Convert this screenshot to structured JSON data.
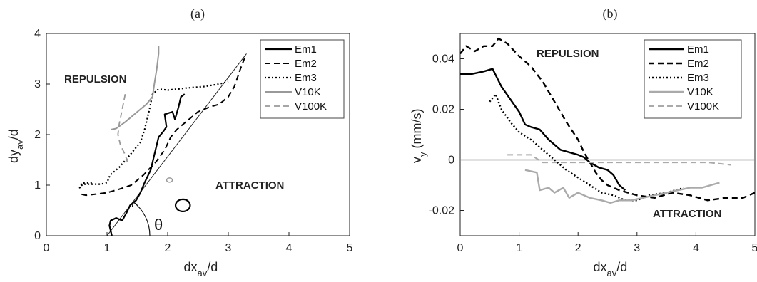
{
  "figure": {
    "panel_a_title": "(a)",
    "panel_b_title": "(b)"
  },
  "chart_data": [
    {
      "type": "line",
      "panel": "(a)",
      "xlabel": "dx",
      "xlabel_sub": "av",
      "xlabel_suffix": "/d",
      "ylabel": "dy",
      "ylabel_sub": "av",
      "ylabel_suffix": "/d",
      "xlim": [
        0,
        5
      ],
      "ylim": [
        0,
        4
      ],
      "xticks": [
        "0",
        "1",
        "2",
        "3",
        "4",
        "5"
      ],
      "yticks": [
        "0",
        "1",
        "2",
        "3",
        "4"
      ],
      "grid": false,
      "legend_position": "top-right",
      "annotations": {
        "repulsion": "REPULSION",
        "attraction": "ATTRACTION",
        "angle": "θ"
      },
      "series": [
        {
          "name": "Em1",
          "color": "#000000",
          "dash": "solid",
          "width": 2.2,
          "x": [
            1.08,
            1.04,
            1.06,
            1.15,
            1.25,
            1.32,
            1.38,
            1.48,
            1.55,
            1.62,
            1.72,
            1.78,
            1.85,
            1.92,
            1.98,
            1.95,
            2.08,
            2.12,
            2.18,
            2.22,
            2.28
          ],
          "y": [
            0.0,
            0.2,
            0.3,
            0.35,
            0.3,
            0.45,
            0.6,
            0.7,
            0.85,
            1.05,
            1.3,
            1.6,
            1.95,
            2.05,
            2.15,
            2.4,
            2.45,
            2.3,
            2.55,
            2.75,
            2.8
          ]
        },
        {
          "name": "Em2",
          "color": "#000000",
          "dash": "dashed",
          "width": 2.0,
          "x": [
            0.58,
            0.65,
            0.8,
            1.0,
            1.2,
            1.4,
            1.6,
            1.8,
            1.95,
            2.05,
            2.15,
            2.3,
            2.5,
            2.7,
            2.85,
            3.0,
            3.1,
            3.2,
            3.28
          ],
          "y": [
            0.82,
            0.8,
            0.82,
            0.85,
            0.92,
            1.0,
            1.2,
            1.45,
            1.7,
            1.95,
            2.1,
            2.25,
            2.45,
            2.55,
            2.6,
            2.75,
            2.95,
            3.3,
            3.55
          ]
        },
        {
          "name": "Em3",
          "color": "#000000",
          "dash": "dotted",
          "width": 2.2,
          "x": [
            0.75,
            0.58,
            0.55,
            0.6,
            0.9,
            1.0,
            1.05,
            1.2,
            1.38,
            1.55,
            1.62,
            1.7,
            1.75,
            1.85,
            2.0,
            2.3,
            2.6,
            2.85,
            3.0
          ],
          "y": [
            1.05,
            1.04,
            0.95,
            1.02,
            1.02,
            1.05,
            1.2,
            1.35,
            1.6,
            1.85,
            2.1,
            2.5,
            2.8,
            2.9,
            2.88,
            2.92,
            2.95,
            3.0,
            3.05
          ]
        },
        {
          "name": "V10K",
          "color": "#999999",
          "dash": "solid",
          "width": 2.0,
          "x": [
            1.07,
            1.15,
            1.3,
            1.5,
            1.65,
            1.75,
            1.78,
            1.82,
            1.85,
            1.85
          ],
          "y": [
            2.1,
            2.12,
            2.25,
            2.45,
            2.6,
            2.75,
            3.0,
            3.3,
            3.6,
            3.75
          ]
        },
        {
          "name": "V100K",
          "color": "#999999",
          "dash": "dashed",
          "width": 1.8,
          "x": [
            1.3,
            1.25,
            1.2,
            1.18,
            1.22,
            1.3,
            1.35
          ],
          "y": [
            2.8,
            2.5,
            2.2,
            2.0,
            1.8,
            1.6,
            1.4
          ]
        }
      ],
      "reference_line": {
        "x": [
          1.0,
          3.3
        ],
        "y": [
          0.0,
          3.6
        ]
      },
      "extras": {
        "ring_center": [
          2.25,
          0.6
        ],
        "ring_radius_units": 0.12,
        "small_blob": [
          2.03,
          1.1
        ],
        "theta_arc_center": [
          1.0,
          0.0
        ]
      }
    },
    {
      "type": "line",
      "panel": "(b)",
      "xlabel": "dx",
      "xlabel_sub": "av",
      "xlabel_suffix": "/d",
      "ylabel": "v",
      "ylabel_sub": "y",
      "ylabel_suffix": "  (mm/s)",
      "xlim": [
        0,
        5
      ],
      "ylim": [
        -0.03,
        0.05
      ],
      "xticks": [
        "0",
        "1",
        "2",
        "3",
        "4",
        "5"
      ],
      "yticks": [
        "-0.02",
        "0",
        "0.02",
        "0.04"
      ],
      "ytick_values": [
        -0.02,
        0,
        0.02,
        0.04
      ],
      "grid": false,
      "zero_line": true,
      "legend_position": "top-right",
      "annotations": {
        "repulsion": "REPULSION",
        "attraction": "ATTRACTION"
      },
      "series": [
        {
          "name": "Em1",
          "color": "#000000",
          "dash": "solid",
          "width": 2.4,
          "x": [
            0.0,
            0.2,
            0.4,
            0.55,
            0.7,
            0.85,
            1.0,
            1.1,
            1.2,
            1.35,
            1.5,
            1.6,
            1.7,
            1.85,
            2.0,
            2.1,
            2.2,
            2.35,
            2.5,
            2.6,
            2.7,
            2.8
          ],
          "y": [
            0.034,
            0.034,
            0.035,
            0.036,
            0.029,
            0.024,
            0.019,
            0.014,
            0.013,
            0.012,
            0.008,
            0.006,
            0.004,
            0.003,
            0.002,
            0.001,
            -0.001,
            -0.003,
            -0.004,
            -0.006,
            -0.01,
            -0.012
          ]
        },
        {
          "name": "Em2",
          "color": "#000000",
          "dash": "dashed",
          "width": 2.4,
          "x": [
            0.0,
            0.1,
            0.25,
            0.4,
            0.55,
            0.65,
            0.8,
            1.0,
            1.2,
            1.4,
            1.6,
            1.8,
            2.0,
            2.1,
            2.2,
            2.3,
            2.4,
            2.5,
            2.7,
            3.0,
            3.3,
            3.6,
            3.9,
            4.2,
            4.5,
            4.8,
            5.0
          ],
          "y": [
            0.042,
            0.045,
            0.043,
            0.045,
            0.045,
            0.048,
            0.046,
            0.041,
            0.037,
            0.031,
            0.023,
            0.015,
            0.008,
            0.003,
            -0.001,
            -0.005,
            -0.008,
            -0.01,
            -0.012,
            -0.014,
            -0.015,
            -0.013,
            -0.014,
            -0.016,
            -0.015,
            -0.015,
            -0.013
          ]
        },
        {
          "name": "Em3",
          "color": "#000000",
          "dash": "dotted",
          "width": 2.4,
          "x": [
            0.5,
            0.6,
            0.7,
            0.85,
            1.0,
            1.2,
            1.4,
            1.6,
            1.8,
            2.0,
            2.2,
            2.4,
            2.6,
            2.8,
            3.0,
            3.2,
            3.5,
            3.8
          ],
          "y": [
            0.023,
            0.026,
            0.02,
            0.015,
            0.011,
            0.008,
            0.004,
            0.0,
            -0.004,
            -0.007,
            -0.01,
            -0.013,
            -0.014,
            -0.016,
            -0.016,
            -0.014,
            -0.013,
            -0.011
          ]
        },
        {
          "name": "V10K",
          "color": "#aaaaaa",
          "dash": "solid",
          "width": 2.4,
          "x": [
            1.1,
            1.3,
            1.35,
            1.5,
            1.6,
            1.75,
            1.85,
            2.0,
            2.2,
            2.4,
            2.55,
            2.7,
            2.9,
            3.1,
            3.3,
            3.5,
            3.7,
            3.9,
            4.1,
            4.4
          ],
          "y": [
            -0.004,
            -0.005,
            -0.012,
            -0.011,
            -0.013,
            -0.011,
            -0.015,
            -0.013,
            -0.015,
            -0.016,
            -0.017,
            -0.016,
            -0.016,
            -0.015,
            -0.014,
            -0.013,
            -0.012,
            -0.011,
            -0.011,
            -0.009
          ]
        },
        {
          "name": "V100K",
          "color": "#aaaaaa",
          "dash": "dashed",
          "width": 2.0,
          "x": [
            0.8,
            1.0,
            1.2,
            1.4,
            1.8,
            2.4,
            3.0,
            3.6,
            4.2,
            4.6
          ],
          "y": [
            0.002,
            0.002,
            0.002,
            -0.001,
            -0.001,
            -0.001,
            -0.001,
            -0.001,
            -0.001,
            -0.002
          ]
        }
      ]
    }
  ]
}
